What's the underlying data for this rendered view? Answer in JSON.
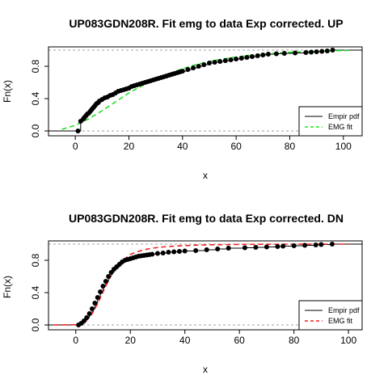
{
  "chart_data": [
    {
      "type": "line",
      "title": "UP083GDN208R. Fit emg to data Exp corrected. UP",
      "xlabel": "x",
      "ylabel": "Fn(x)",
      "xlim": [
        -10,
        107
      ],
      "ylim": [
        0,
        1
      ],
      "x_ticks": [
        0,
        20,
        40,
        60,
        80,
        100
      ],
      "x_tick_labels": [
        "0",
        "20",
        "40",
        "60",
        "80",
        "100"
      ],
      "y_ticks": [
        0,
        0.4,
        0.8
      ],
      "y_tick_labels": [
        "0.0",
        "0.4",
        "0.8"
      ],
      "reference_lines": [
        0,
        1
      ],
      "grid": false,
      "legend": {
        "position": "bottom-right",
        "entries": [
          "Empir pdf",
          "EMG fit"
        ]
      },
      "series": [
        {
          "name": "Empir pdf",
          "style": "step-with-points",
          "color": "#000000",
          "x": [
            1,
            2,
            3,
            3.5,
            4,
            4.5,
            5,
            5.5,
            6,
            6.5,
            7,
            7.5,
            8,
            8.5,
            9,
            10,
            11,
            12,
            13,
            14,
            15,
            16,
            17,
            18,
            19,
            20,
            21,
            22,
            23,
            24,
            25,
            26,
            27,
            28,
            29,
            30,
            31,
            32,
            33,
            34,
            35,
            36,
            37,
            38,
            39,
            40,
            42,
            44,
            46,
            48,
            50,
            52,
            54,
            56,
            58,
            60,
            62,
            64,
            66,
            68,
            70,
            72,
            75,
            78,
            82,
            86,
            88,
            90,
            92,
            94,
            96
          ],
          "y": [
            0.0,
            0.12,
            0.15,
            0.17,
            0.19,
            0.21,
            0.22,
            0.24,
            0.26,
            0.28,
            0.3,
            0.32,
            0.34,
            0.35,
            0.37,
            0.39,
            0.41,
            0.42,
            0.44,
            0.45,
            0.47,
            0.49,
            0.5,
            0.51,
            0.52,
            0.53,
            0.55,
            0.56,
            0.57,
            0.58,
            0.59,
            0.6,
            0.61,
            0.62,
            0.63,
            0.64,
            0.65,
            0.66,
            0.67,
            0.68,
            0.69,
            0.7,
            0.71,
            0.72,
            0.73,
            0.74,
            0.76,
            0.78,
            0.8,
            0.82,
            0.84,
            0.85,
            0.86,
            0.87,
            0.88,
            0.89,
            0.9,
            0.91,
            0.92,
            0.93,
            0.94,
            0.95,
            0.955,
            0.96,
            0.965,
            0.97,
            0.975,
            0.98,
            0.985,
            0.99,
            1.0
          ]
        },
        {
          "name": "EMG fit",
          "style": "dashed",
          "color": "#22dd22",
          "x": [
            -5,
            0,
            5,
            10,
            15,
            20,
            25,
            30,
            35,
            40,
            45,
            50,
            55,
            60,
            65,
            70,
            75,
            80,
            85,
            90,
            95,
            100,
            102
          ],
          "y": [
            0.02,
            0.07,
            0.15,
            0.25,
            0.36,
            0.47,
            0.56,
            0.64,
            0.71,
            0.77,
            0.82,
            0.86,
            0.89,
            0.915,
            0.935,
            0.95,
            0.963,
            0.973,
            0.98,
            0.986,
            0.99,
            0.994,
            0.995
          ]
        }
      ]
    },
    {
      "type": "line",
      "title": "UP083GDN208R. Fit emg to data Exp corrected. DN",
      "xlabel": "x",
      "ylabel": "Fn(x)",
      "xlim": [
        -10,
        105
      ],
      "ylim": [
        0,
        1
      ],
      "x_ticks": [
        0,
        20,
        40,
        60,
        80,
        100
      ],
      "x_tick_labels": [
        "0",
        "20",
        "40",
        "60",
        "80",
        "100"
      ],
      "y_ticks": [
        0,
        0.4,
        0.8
      ],
      "y_tick_labels": [
        "0.0",
        "0.4",
        "0.8"
      ],
      "reference_lines": [
        0,
        1
      ],
      "grid": false,
      "legend": {
        "position": "bottom-right",
        "entries": [
          "Empir pdf",
          "EMG fit"
        ]
      },
      "series": [
        {
          "name": "Empir pdf",
          "style": "step-with-points",
          "color": "#000000",
          "x": [
            1,
            2,
            3,
            4,
            5,
            6,
            7,
            8,
            9,
            10,
            11,
            12,
            13,
            14,
            15,
            16,
            17,
            18,
            19,
            20,
            21,
            22,
            23,
            24,
            25,
            26,
            27,
            28,
            30,
            32,
            34,
            36,
            38,
            40,
            44,
            48,
            52,
            56,
            62,
            66,
            70,
            74,
            76,
            80,
            84,
            88,
            90,
            94
          ],
          "y": [
            0.0,
            0.02,
            0.05,
            0.09,
            0.14,
            0.2,
            0.27,
            0.34,
            0.41,
            0.48,
            0.54,
            0.6,
            0.65,
            0.69,
            0.72,
            0.75,
            0.78,
            0.8,
            0.81,
            0.82,
            0.83,
            0.84,
            0.85,
            0.855,
            0.86,
            0.865,
            0.87,
            0.875,
            0.885,
            0.89,
            0.9,
            0.905,
            0.91,
            0.915,
            0.92,
            0.93,
            0.94,
            0.95,
            0.955,
            0.96,
            0.965,
            0.97,
            0.975,
            0.98,
            0.985,
            0.99,
            0.995,
            1.0
          ]
        },
        {
          "name": "EMG fit",
          "style": "dashed",
          "color": "#ee2222",
          "x": [
            -8,
            0,
            2,
            4,
            6,
            8,
            10,
            12,
            14,
            16,
            18,
            20,
            22,
            25,
            28,
            32,
            36,
            40,
            45,
            50,
            55,
            60,
            70,
            80,
            90,
            100
          ],
          "y": [
            0.0,
            0.003,
            0.02,
            0.06,
            0.14,
            0.26,
            0.41,
            0.55,
            0.67,
            0.76,
            0.82,
            0.87,
            0.9,
            0.93,
            0.95,
            0.965,
            0.975,
            0.982,
            0.988,
            0.992,
            0.994,
            0.996,
            0.998,
            0.999,
            1.0,
            1.0
          ]
        }
      ]
    }
  ]
}
